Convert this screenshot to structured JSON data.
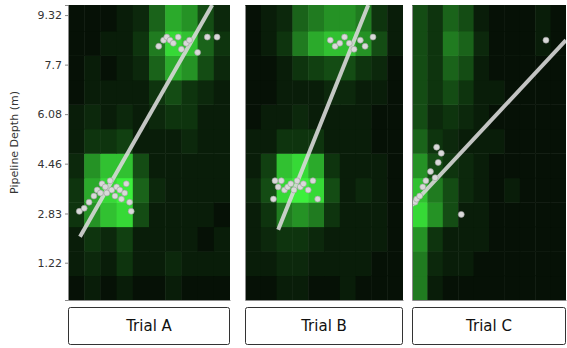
{
  "chart_data": [
    {
      "type": "scatter",
      "title": "Trial A",
      "y_label": "Pipeline Depth (m)",
      "xlim": [
        0,
        10
      ],
      "ylim": [
        0,
        9.65
      ],
      "yticks": [
        1.22,
        2.83,
        4.46,
        6.08,
        7.7,
        9.32
      ],
      "tick_labels": "y",
      "heatmap": {
        "x_edges": [
          0,
          1,
          2,
          3,
          4,
          5,
          6,
          7,
          8,
          9,
          10
        ],
        "y_edges": [
          0,
          0.8,
          1.6,
          2.4,
          3.2,
          4.0,
          4.8,
          5.6,
          6.4,
          7.2,
          8.0,
          8.8,
          9.65
        ],
        "zlim": [
          0,
          1
        ],
        "values": [
          [
            0.05,
            0.1,
            0.05,
            0.1,
            0.05,
            0.05,
            0.1,
            0.05,
            0.05,
            0.05
          ],
          [
            0.1,
            0.15,
            0.1,
            0.2,
            0.1,
            0.1,
            0.15,
            0.1,
            0.1,
            0.1
          ],
          [
            0.1,
            0.2,
            0.15,
            0.25,
            0.1,
            0.1,
            0.1,
            0.1,
            0.05,
            0.1
          ],
          [
            0.2,
            0.6,
            0.8,
            0.9,
            0.3,
            0.1,
            0.1,
            0.1,
            0.1,
            0.05
          ],
          [
            0.2,
            0.7,
            0.9,
            1.0,
            0.4,
            0.15,
            0.1,
            0.1,
            0.1,
            0.1
          ],
          [
            0.15,
            0.6,
            0.8,
            0.8,
            0.3,
            0.1,
            0.1,
            0.1,
            0.1,
            0.1
          ],
          [
            0.1,
            0.2,
            0.2,
            0.25,
            0.1,
            0.1,
            0.1,
            0.15,
            0.1,
            0.1
          ],
          [
            0.1,
            0.15,
            0.1,
            0.15,
            0.1,
            0.15,
            0.2,
            0.2,
            0.1,
            0.1
          ],
          [
            0.05,
            0.1,
            0.1,
            0.1,
            0.1,
            0.2,
            0.3,
            0.2,
            0.15,
            0.1
          ],
          [
            0.05,
            0.1,
            0.05,
            0.1,
            0.15,
            0.4,
            0.7,
            0.6,
            0.3,
            0.15
          ],
          [
            0.05,
            0.05,
            0.1,
            0.1,
            0.2,
            0.5,
            0.9,
            0.8,
            0.4,
            0.2
          ],
          [
            0.05,
            0.05,
            0.05,
            0.1,
            0.15,
            0.4,
            0.7,
            0.6,
            0.3,
            0.15
          ]
        ]
      },
      "series": [
        {
          "type": "line",
          "color": "#d8d8d8",
          "line_style": "solid",
          "x": [
            0.74,
            8.9
          ],
          "values": [
            2.07,
            9.65
          ]
        },
        {
          "type": "scatter",
          "color": "#d9d9d9",
          "marker": "circle",
          "x": [
            0.7,
            1.0,
            1.3,
            1.6,
            1.8,
            2.0,
            2.1,
            2.3,
            2.4,
            2.6,
            2.7,
            2.9,
            3.0,
            3.2,
            3.3,
            3.5,
            3.6,
            3.8,
            3.9,
            5.6,
            5.9,
            6.1,
            6.3,
            6.5,
            6.8,
            7.0,
            7.3,
            7.5,
            8.0,
            8.6,
            9.2
          ],
          "values": [
            2.9,
            3.0,
            3.2,
            3.4,
            3.6,
            3.5,
            3.8,
            3.7,
            3.5,
            3.9,
            3.6,
            3.4,
            3.7,
            3.6,
            3.3,
            3.5,
            3.8,
            3.2,
            2.9,
            8.3,
            8.5,
            8.6,
            8.5,
            8.4,
            8.6,
            8.2,
            8.4,
            8.5,
            8.1,
            8.6,
            8.6
          ]
        }
      ]
    },
    {
      "type": "scatter",
      "title": "Trial B",
      "xlim": [
        0,
        10
      ],
      "ylim": [
        0,
        9.65
      ],
      "tick_labels": false,
      "heatmap": {
        "x_edges": [
          0,
          1,
          2,
          3,
          4,
          5,
          6,
          7,
          8,
          9,
          10
        ],
        "y_edges": [
          0,
          0.8,
          1.6,
          2.4,
          3.2,
          4.0,
          4.8,
          5.6,
          6.4,
          7.2,
          8.0,
          8.8,
          9.65
        ],
        "zlim": [
          0,
          1
        ],
        "values": [
          [
            0.05,
            0.05,
            0.1,
            0.1,
            0.05,
            0.05,
            0.1,
            0.05,
            0.05,
            0.05
          ],
          [
            0.1,
            0.1,
            0.15,
            0.15,
            0.1,
            0.1,
            0.1,
            0.1,
            0.05,
            0.05
          ],
          [
            0.1,
            0.15,
            0.2,
            0.2,
            0.15,
            0.1,
            0.1,
            0.1,
            0.1,
            0.05
          ],
          [
            0.1,
            0.2,
            0.5,
            0.6,
            0.5,
            0.2,
            0.1,
            0.1,
            0.1,
            0.05
          ],
          [
            0.15,
            0.3,
            0.9,
            1.0,
            0.9,
            0.3,
            0.1,
            0.15,
            0.1,
            0.05
          ],
          [
            0.1,
            0.25,
            0.8,
            0.9,
            0.7,
            0.2,
            0.1,
            0.1,
            0.1,
            0.05
          ],
          [
            0.1,
            0.1,
            0.2,
            0.2,
            0.2,
            0.1,
            0.1,
            0.1,
            0.05,
            0.05
          ],
          [
            0.05,
            0.1,
            0.1,
            0.15,
            0.1,
            0.1,
            0.1,
            0.1,
            0.05,
            0.05
          ],
          [
            0.05,
            0.05,
            0.1,
            0.1,
            0.1,
            0.15,
            0.15,
            0.1,
            0.1,
            0.05
          ],
          [
            0.05,
            0.05,
            0.1,
            0.2,
            0.25,
            0.3,
            0.3,
            0.2,
            0.15,
            0.05
          ],
          [
            0.05,
            0.1,
            0.2,
            0.5,
            0.7,
            0.8,
            0.8,
            0.6,
            0.3,
            0.1
          ],
          [
            0.05,
            0.1,
            0.15,
            0.4,
            0.5,
            0.6,
            0.6,
            0.5,
            0.2,
            0.1
          ]
        ]
      },
      "series": [
        {
          "type": "line",
          "color": "#d8d8d8",
          "line_style": "solid",
          "x": [
            2.1,
            7.8
          ],
          "values": [
            2.3,
            9.65
          ]
        },
        {
          "type": "scatter",
          "color": "#d9d9d9",
          "marker": "circle",
          "x": [
            1.9,
            2.1,
            2.3,
            2.5,
            2.7,
            2.9,
            3.1,
            3.3,
            3.5,
            3.7,
            4.0,
            4.3,
            1.8,
            4.6,
            5.4,
            5.7,
            6.0,
            6.3,
            6.6,
            6.9,
            7.3,
            7.6,
            8.1
          ],
          "values": [
            3.9,
            3.7,
            3.9,
            3.6,
            3.7,
            3.8,
            3.6,
            3.9,
            3.7,
            3.8,
            3.6,
            3.9,
            3.3,
            3.3,
            8.5,
            8.3,
            8.4,
            8.6,
            8.4,
            8.2,
            8.5,
            8.3,
            8.6
          ]
        }
      ]
    },
    {
      "type": "scatter",
      "title": "Trial C",
      "xlim": [
        0,
        10
      ],
      "ylim": [
        0,
        9.65
      ],
      "tick_labels": false,
      "heatmap": {
        "x_edges": [
          0,
          1,
          2,
          3,
          4,
          5,
          6,
          7,
          8,
          9,
          10
        ],
        "y_edges": [
          0,
          0.8,
          1.6,
          2.4,
          3.2,
          4.0,
          4.8,
          5.6,
          6.4,
          7.2,
          8.0,
          8.8,
          9.65
        ],
        "zlim": [
          0,
          1
        ],
        "values": [
          [
            0.5,
            0.1,
            0.05,
            0.05,
            0.05,
            0.05,
            0.05,
            0.05,
            0.05,
            0.05
          ],
          [
            0.5,
            0.15,
            0.1,
            0.1,
            0.05,
            0.05,
            0.05,
            0.05,
            0.05,
            0.05
          ],
          [
            0.6,
            0.2,
            0.1,
            0.1,
            0.1,
            0.05,
            0.05,
            0.05,
            0.05,
            0.05
          ],
          [
            0.9,
            0.6,
            0.3,
            0.1,
            0.1,
            0.05,
            0.05,
            0.05,
            0.05,
            0.05
          ],
          [
            0.8,
            0.5,
            0.3,
            0.15,
            0.1,
            0.05,
            0.1,
            0.05,
            0.05,
            0.05
          ],
          [
            0.6,
            0.3,
            0.2,
            0.15,
            0.1,
            0.05,
            0.05,
            0.05,
            0.05,
            0.05
          ],
          [
            0.4,
            0.2,
            0.15,
            0.1,
            0.1,
            0.1,
            0.05,
            0.05,
            0.05,
            0.05
          ],
          [
            0.3,
            0.15,
            0.2,
            0.15,
            0.1,
            0.05,
            0.05,
            0.05,
            0.05,
            0.05
          ],
          [
            0.3,
            0.2,
            0.3,
            0.2,
            0.1,
            0.1,
            0.05,
            0.05,
            0.05,
            0.05
          ],
          [
            0.3,
            0.2,
            0.4,
            0.3,
            0.1,
            0.05,
            0.05,
            0.05,
            0.05,
            0.05
          ],
          [
            0.3,
            0.2,
            0.5,
            0.4,
            0.15,
            0.05,
            0.05,
            0.05,
            0.1,
            0.05
          ],
          [
            0.3,
            0.2,
            0.4,
            0.3,
            0.1,
            0.05,
            0.05,
            0.05,
            0.1,
            0.05
          ]
        ]
      },
      "series": [
        {
          "type": "line",
          "color": "#d8d8d8",
          "line_style": "solid",
          "x": [
            0,
            10
          ],
          "values": [
            3.1,
            8.5
          ]
        },
        {
          "type": "scatter",
          "color": "#d9d9d9",
          "marker": "circle",
          "x": [
            0.2,
            0.3,
            0.5,
            0.7,
            0.9,
            1.2,
            1.5,
            1.7,
            1.9,
            1.6,
            3.2,
            8.7
          ],
          "values": [
            3.2,
            3.3,
            3.4,
            3.7,
            3.9,
            4.2,
            4.0,
            4.5,
            4.8,
            5.0,
            2.8,
            8.5
          ]
        }
      ]
    }
  ]
}
